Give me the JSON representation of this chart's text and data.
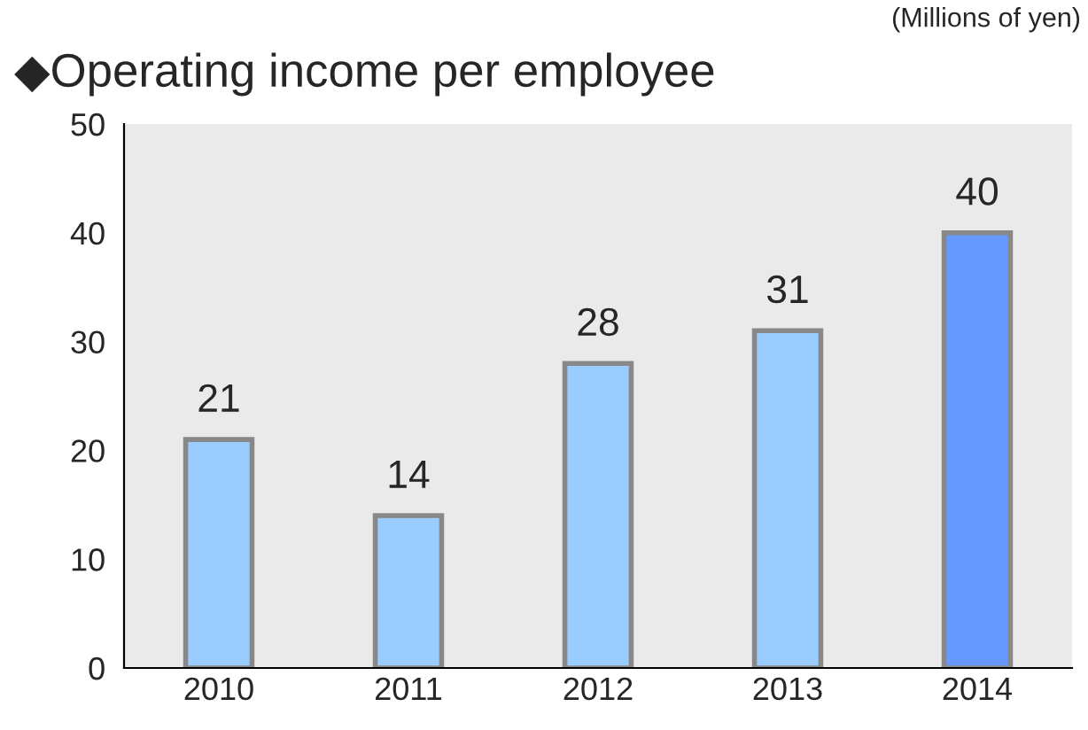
{
  "chart_data": {
    "type": "bar",
    "title": "◆Operating income per employee",
    "annotations": [
      "(Millions of yen)"
    ],
    "categories": [
      "2010",
      "2011",
      "2012",
      "2013",
      "2014"
    ],
    "values": [
      21,
      14,
      28,
      31,
      40
    ],
    "colors": [
      "#99ccff",
      "#99ccff",
      "#99ccff",
      "#99ccff",
      "#6699ff"
    ],
    "ylim": [
      0,
      50
    ],
    "yticks": [
      0,
      10,
      20,
      30,
      40,
      50
    ],
    "grid": false,
    "data_labels": true
  }
}
